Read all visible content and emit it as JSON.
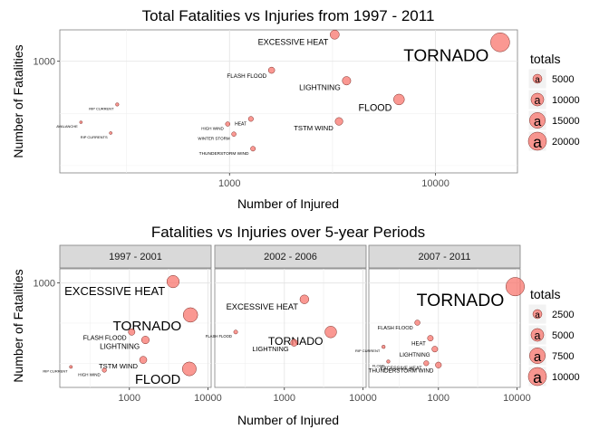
{
  "chart_data": [
    {
      "type": "scatter",
      "scale": "log-log",
      "title": "Total Fatalities vs Injuries from 1997 - 2011",
      "xlabel": "Number of Injured",
      "ylabel": "Number of Fatalities",
      "xticks": [
        1000,
        10000
      ],
      "yticks": [
        1000
      ],
      "xlim": [
        150,
        25000
      ],
      "ylim": [
        85,
        2000
      ],
      "grid": true,
      "legend": {
        "title": "totals",
        "glyph": "a",
        "sizes": [
          5000,
          10000,
          15000,
          20000
        ],
        "placement": "right"
      },
      "marker_color": "#F8766D",
      "points": [
        {
          "label": "TORNADO",
          "x": 20600,
          "y": 1520,
          "total": 22000
        },
        {
          "label": "EXCESSIVE HEAT",
          "x": 3240,
          "y": 1800,
          "total": 5100
        },
        {
          "label": "FLOOD",
          "x": 6650,
          "y": 430,
          "total": 7100
        },
        {
          "label": "LIGHTNING",
          "x": 3700,
          "y": 650,
          "total": 4400
        },
        {
          "label": "TSTM WIND",
          "x": 3400,
          "y": 265,
          "total": 3650
        },
        {
          "label": "FLASH FLOOD",
          "x": 1600,
          "y": 820,
          "total": 2450
        },
        {
          "label": "HEAT",
          "x": 1270,
          "y": 280,
          "total": 1550
        },
        {
          "label": "HIGH WIND",
          "x": 980,
          "y": 250,
          "total": 1230
        },
        {
          "label": "WINTER STORM",
          "x": 1050,
          "y": 200,
          "total": 1250
        },
        {
          "label": "THUNDERSTORM WIND",
          "x": 1300,
          "y": 145,
          "total": 1450
        },
        {
          "label": "RIP CURRENT",
          "x": 285,
          "y": 385,
          "total": 670
        },
        {
          "label": "AVALANCHE",
          "x": 190,
          "y": 260,
          "total": 450
        },
        {
          "label": "RIP CURRENTS",
          "x": 265,
          "y": 205,
          "total": 470
        }
      ]
    },
    {
      "type": "scatter",
      "scale": "log-log",
      "title": "Fatalities vs Injuries over 5-year Periods",
      "xlabel": "Number of Injured",
      "ylabel": "Number of Fatalities",
      "xlim": [
        130,
        11000
      ],
      "ylim": [
        50,
        1500
      ],
      "grid": true,
      "legend": {
        "title": "totals",
        "glyph": "a",
        "sizes": [
          2500,
          5000,
          7500,
          10000
        ],
        "placement": "right"
      },
      "marker_color": "#F8766D",
      "panels": [
        {
          "label": "1997 - 2001",
          "xticks": [
            1000,
            10000
          ],
          "yticks": [
            1000
          ],
          "points": [
            {
              "label": "EXCESSIVE HEAT",
              "x": 3600,
              "y": 1040,
              "total": 4650
            },
            {
              "label": "TORNADO",
              "x": 6000,
              "y": 400,
              "total": 6400
            },
            {
              "label": "FLASH FLOOD",
              "x": 1070,
              "y": 245,
              "total": 1320
            },
            {
              "label": "LIGHTNING",
              "x": 1600,
              "y": 195,
              "total": 1800
            },
            {
              "label": "TSTM WIND",
              "x": 1500,
              "y": 110,
              "total": 1600
            },
            {
              "label": "FLOOD",
              "x": 5800,
              "y": 85,
              "total": 5900
            },
            {
              "label": "RIP CURRENT",
              "x": 180,
              "y": 90,
              "total": 270
            },
            {
              "label": "HIGH WIND",
              "x": 480,
              "y": 82,
              "total": 560
            }
          ]
        },
        {
          "label": "2002 - 2006",
          "xticks": [
            1000,
            10000
          ],
          "yticks": [
            1000
          ],
          "points": [
            {
              "label": "EXCESSIVE HEAT",
              "x": 1800,
              "y": 625,
              "total": 2400
            },
            {
              "label": "TORNADO",
              "x": 3900,
              "y": 245,
              "total": 4150
            },
            {
              "label": "FLASH FLOOD",
              "x": 240,
              "y": 245,
              "total": 480
            },
            {
              "label": "LIGHTNING",
              "x": 1330,
              "y": 180,
              "total": 1500
            }
          ]
        },
        {
          "label": "2007 - 2011",
          "xticks": [
            1000,
            10000
          ],
          "yticks": [
            1000
          ],
          "points": [
            {
              "label": "TORNADO",
              "x": 9500,
              "y": 900,
              "total": 10400
            },
            {
              "label": "FLASH FLOOD",
              "x": 540,
              "y": 320,
              "total": 860
            },
            {
              "label": "HEAT",
              "x": 790,
              "y": 205,
              "total": 1000
            },
            {
              "label": "LIGHTNING",
              "x": 900,
              "y": 150,
              "total": 1050
            },
            {
              "label": "RIP CURRENT",
              "x": 200,
              "y": 160,
              "total": 360
            },
            {
              "label": "FLOOD",
              "x": 230,
              "y": 105,
              "total": 340
            },
            {
              "label": "EXCESSIVE HEAT",
              "x": 700,
              "y": 100,
              "total": 800
            },
            {
              "label": "THUNDERSTORM WIND",
              "x": 1000,
              "y": 95,
              "total": 1100
            }
          ]
        }
      ]
    }
  ]
}
